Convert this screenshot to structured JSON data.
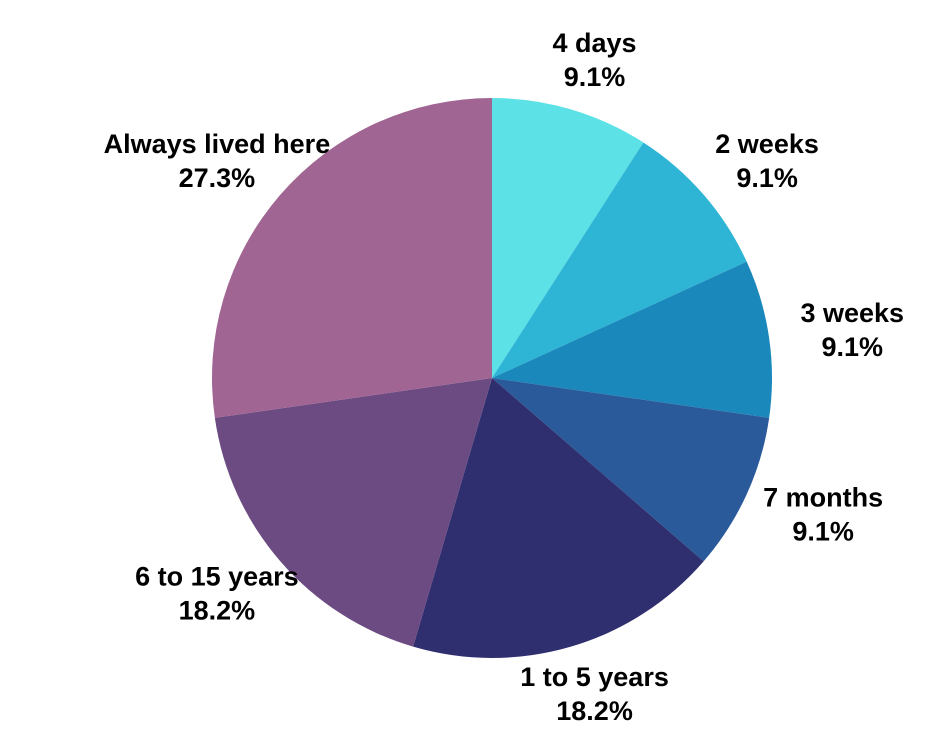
{
  "chart_data": {
    "type": "pie",
    "categories": [
      "4 days",
      "2 weeks",
      "3 weeks",
      "7 months",
      "1 to 5 years",
      "6 to 15 years",
      "Always lived here"
    ],
    "values": [
      9.1,
      9.1,
      9.1,
      9.1,
      18.2,
      18.2,
      27.3
    ],
    "value_labels": [
      "9.1%",
      "9.1%",
      "9.1%",
      "9.1%",
      "18.2%",
      "18.2%",
      "27.3%"
    ],
    "colors": [
      "#5ce1e6",
      "#2eb5d6",
      "#1b88bc",
      "#2a5a9a",
      "#2f2e6e",
      "#6c4a82",
      "#a06592"
    ]
  }
}
